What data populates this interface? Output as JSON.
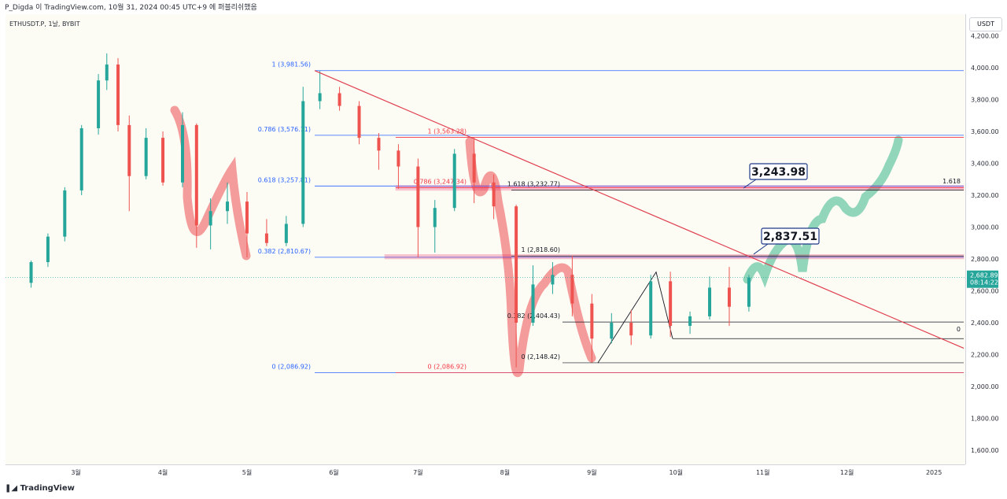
{
  "header": {
    "text": "P_Digda 이 TradingView.com, 10월 31, 2024 00:45 UTC+9 에 퍼블리쉬했음"
  },
  "symbol": {
    "label": "ETHUSDT.P, 1날, BYBIT"
  },
  "currency": {
    "label": "USDT"
  },
  "branding": {
    "label": "TradingView"
  },
  "chart_data": {
    "type": "candlestick",
    "ylim": [
      1500,
      4300
    ],
    "y_ticks": [
      "4,200.00",
      "4,000.00",
      "3,800.00",
      "3,600.00",
      "3,400.00",
      "3,200.00",
      "3,000.00",
      "2,800.00",
      "2,600.00",
      "2,400.00",
      "2,200.00",
      "2,000.00",
      "1,800.00",
      "1,600.00"
    ],
    "x_ticks": [
      "3월",
      "4월",
      "5월",
      "6월",
      "7월",
      "8월",
      "9월",
      "10월",
      "11월",
      "12월",
      "2025"
    ],
    "price_badge": {
      "price": "2,682.89",
      "countdown": "08:14:22"
    },
    "candles_approx": [
      [
        "2024-02-14",
        2650,
        2790,
        2620,
        2780
      ],
      [
        "2024-02-20",
        2780,
        2960,
        2750,
        2940
      ],
      [
        "2024-02-26",
        2940,
        3250,
        2910,
        3230
      ],
      [
        "2024-03-03",
        3230,
        3640,
        3200,
        3620
      ],
      [
        "2024-03-09",
        3620,
        3960,
        3580,
        3920
      ],
      [
        "2024-03-12",
        3920,
        4090,
        3860,
        4020
      ],
      [
        "2024-03-16",
        4020,
        4060,
        3600,
        3640
      ],
      [
        "2024-03-20",
        3640,
        3700,
        3100,
        3320
      ],
      [
        "2024-03-26",
        3320,
        3620,
        3300,
        3560
      ],
      [
        "2024-04-01",
        3560,
        3600,
        3260,
        3280
      ],
      [
        "2024-04-08",
        3280,
        3720,
        3250,
        3640
      ],
      [
        "2024-04-13",
        3640,
        3650,
        2870,
        3010
      ],
      [
        "2024-04-18",
        3010,
        3180,
        2860,
        3100
      ],
      [
        "2024-04-24",
        3100,
        3280,
        3020,
        3160
      ],
      [
        "2024-05-01",
        3160,
        3220,
        2810,
        2960
      ],
      [
        "2024-05-08",
        2960,
        3050,
        2880,
        2900
      ],
      [
        "2024-05-15",
        2900,
        3070,
        2880,
        3020
      ],
      [
        "2024-05-21",
        3020,
        3880,
        3000,
        3790
      ],
      [
        "2024-05-27",
        3790,
        3980,
        3740,
        3840
      ],
      [
        "2024-06-03",
        3840,
        3880,
        3730,
        3760
      ],
      [
        "2024-06-10",
        3760,
        3790,
        3520,
        3560
      ],
      [
        "2024-06-17",
        3560,
        3590,
        3360,
        3480
      ],
      [
        "2024-06-24",
        3480,
        3520,
        3240,
        3380
      ],
      [
        "2024-07-01",
        3380,
        3430,
        2810,
        3000
      ],
      [
        "2024-07-07",
        3000,
        3170,
        2840,
        3120
      ],
      [
        "2024-07-14",
        3120,
        3490,
        3100,
        3460
      ],
      [
        "2024-07-21",
        3460,
        3560,
        3150,
        3280
      ],
      [
        "2024-07-28",
        3280,
        3330,
        3050,
        3130
      ],
      [
        "2024-08-05",
        3130,
        3140,
        2120,
        2400
      ],
      [
        "2024-08-11",
        2400,
        2760,
        2380,
        2640
      ],
      [
        "2024-08-18",
        2640,
        2780,
        2580,
        2700
      ],
      [
        "2024-08-25",
        2700,
        2820,
        2440,
        2520
      ],
      [
        "2024-09-01",
        2520,
        2580,
        2150,
        2300
      ],
      [
        "2024-09-08",
        2300,
        2460,
        2270,
        2400
      ],
      [
        "2024-09-15",
        2400,
        2480,
        2260,
        2320
      ],
      [
        "2024-09-22",
        2320,
        2700,
        2300,
        2660
      ],
      [
        "2024-09-29",
        2660,
        2720,
        2310,
        2380
      ],
      [
        "2024-10-06",
        2380,
        2470,
        2330,
        2440
      ],
      [
        "2024-10-13",
        2440,
        2690,
        2420,
        2620
      ],
      [
        "2024-10-20",
        2620,
        2750,
        2380,
        2500
      ],
      [
        "2024-10-27",
        2500,
        2700,
        2470,
        2682.89
      ]
    ],
    "fib_left": [
      {
        "label": "1 (3,981.56)",
        "price": 3981.56
      },
      {
        "label": "0.786 (3,576.11)",
        "price": 3576.11
      },
      {
        "label": "0.618 (3,257.81)",
        "price": 3257.81
      },
      {
        "label": "0.382 (2,810.67)",
        "price": 2810.67
      },
      {
        "label": "0 (2,086.92)",
        "price": 2086.92
      }
    ],
    "fib_right": [
      {
        "label": "1 (3,563.28)",
        "price": 3563.28
      },
      {
        "label": "0.786 (3,247.34)",
        "price": 3247.34
      },
      {
        "label": "0 (2,086.92)",
        "price": 2086.92
      }
    ],
    "fib_ext": [
      {
        "label": "1.618 (3,232.77)",
        "price": 3232.77
      },
      {
        "label": "1 (2,818.60)",
        "price": 2818.6
      },
      {
        "label": "0.382 (2,404.43)",
        "price": 2404.43
      },
      {
        "label": "0 (2,148.42)",
        "price": 2148.42
      }
    ],
    "extension_labels": {
      "upper": "1.618",
      "lower": "0"
    },
    "callouts": [
      {
        "label": "3,243.98",
        "price": 3243.98
      },
      {
        "label": "2,837.51",
        "price": 2837.51
      }
    ],
    "colors": {
      "up": "#26a69a",
      "down": "#ef5350",
      "fib_blue": "#2962ff",
      "fib_red": "#f23645",
      "trend": "#e04050",
      "zone": "#e91e63",
      "highlight_red": "#f28b8b",
      "highlight_green": "#7ecfb0"
    }
  }
}
